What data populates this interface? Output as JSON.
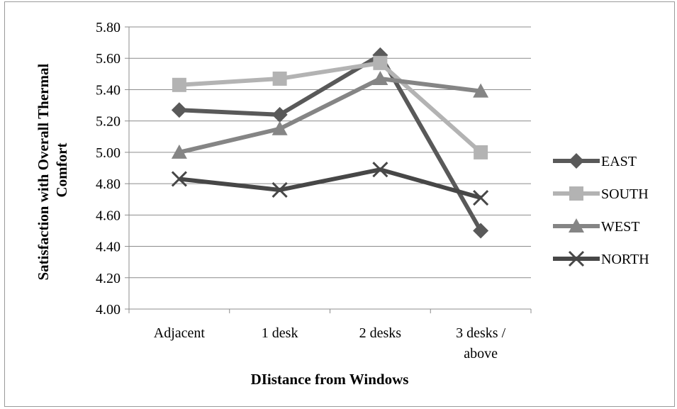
{
  "chart_data": {
    "type": "line",
    "title": "",
    "xlabel": "DIistance from Windows",
    "ylabel_lines": [
      "Satisfaction with Overall Thermal",
      "Comfort"
    ],
    "categories": [
      "Adjacent",
      "1 desk",
      "2 desks",
      "3 desks / above"
    ],
    "category_lines": [
      [
        "Adjacent"
      ],
      [
        "1 desk"
      ],
      [
        "2 desks"
      ],
      [
        "3 desks /",
        "above"
      ]
    ],
    "ylim": [
      4.0,
      5.8
    ],
    "yticks": [
      "4.00",
      "4.20",
      "4.40",
      "4.60",
      "4.80",
      "5.00",
      "5.20",
      "5.40",
      "5.60",
      "5.80"
    ],
    "grid": true,
    "legend_position": "right",
    "series": [
      {
        "name": "EAST",
        "values": [
          5.27,
          5.24,
          5.62,
          4.5
        ],
        "color": "#595959",
        "marker": "diamond"
      },
      {
        "name": "SOUTH",
        "values": [
          5.43,
          5.47,
          5.57,
          5.0
        ],
        "color": "#b3b3b3",
        "marker": "square"
      },
      {
        "name": "WEST",
        "values": [
          5.0,
          5.15,
          5.47,
          5.39
        ],
        "color": "#858585",
        "marker": "triangle"
      },
      {
        "name": "NORTH",
        "values": [
          4.83,
          4.76,
          4.89,
          4.71
        ],
        "color": "#474747",
        "marker": "x"
      }
    ]
  }
}
